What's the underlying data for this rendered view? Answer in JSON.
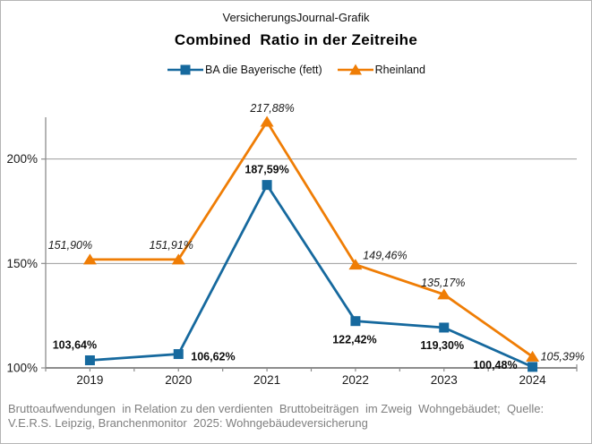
{
  "header": {
    "brand": "VersicherungsJournal-Grafik",
    "title": "Combined  Ratio in der Zeitreihe"
  },
  "legend": {
    "items": [
      {
        "label": "BA die Bayerische (fett)",
        "color": "#16699E",
        "marker": "square"
      },
      {
        "label": "Rheinland",
        "color": "#EF7D05",
        "marker": "triangle"
      }
    ]
  },
  "chart_data": {
    "type": "line",
    "title": "Combined Ratio in der Zeitreihe",
    "categories": [
      "2019",
      "2020",
      "2021",
      "2022",
      "2023",
      "2024"
    ],
    "series": [
      {
        "name": "BA die Bayerische (fett)",
        "color": "#16699E",
        "marker": "square",
        "label_style": "bold",
        "values": [
          103.64,
          106.62,
          187.59,
          122.42,
          119.3,
          100.48
        ],
        "labels": [
          "103,64%",
          "106,62%",
          "187,59%",
          "122,42%",
          "119,30%",
          "100,48%"
        ],
        "label_pos": [
          {
            "dx": -17,
            "dy": -13,
            "anchor": "middle"
          },
          {
            "dx": 14,
            "dy": 7,
            "anchor": "start"
          },
          {
            "dx": 0,
            "dy": -13,
            "anchor": "middle"
          },
          {
            "dx": -1,
            "dy": 25,
            "anchor": "middle"
          },
          {
            "dx": -2,
            "dy": 24,
            "anchor": "middle"
          },
          {
            "dx": -17,
            "dy": 2,
            "anchor": "end"
          }
        ]
      },
      {
        "name": "Rheinland",
        "color": "#EF7D05",
        "marker": "triangle",
        "label_style": "italic",
        "values": [
          151.9,
          151.91,
          217.88,
          149.46,
          135.17,
          105.39
        ],
        "labels": [
          "151,90%",
          "151,91%",
          "217,88%",
          "149,46%",
          "135,17%",
          "105,39%"
        ],
        "label_pos": [
          {
            "dx": -22,
            "dy": -12,
            "anchor": "middle"
          },
          {
            "dx": -8,
            "dy": -12,
            "anchor": "middle"
          },
          {
            "dx": 6,
            "dy": -11,
            "anchor": "middle"
          },
          {
            "dx": 33,
            "dy": -6,
            "anchor": "middle"
          },
          {
            "dx": -1,
            "dy": -9,
            "anchor": "middle"
          },
          {
            "dx": 9,
            "dy": 4,
            "anchor": "start"
          }
        ]
      }
    ],
    "y_axis": {
      "min": 100,
      "max": 220,
      "ticks": [
        100,
        150,
        200
      ],
      "tick_labels": [
        "100%",
        "150%",
        "200%"
      ],
      "gridlines": [
        150,
        200
      ]
    },
    "grid": true,
    "legend_position": "top"
  },
  "footer": {
    "line1": "Bruttoaufwendungen  in Relation zu den verdienten  Bruttobeiträgen  im Zweig  Wohngebäudet;  Quelle:",
    "line2": "V.E.R.S. Leipzig, Branchenmonitor  2025: Wohngebäudeversicherung"
  },
  "colors": {
    "series_ba": "#16699E",
    "series_rheinland": "#EF7D05",
    "gridline": "#9B9B9B",
    "axis": "#8C8C8C",
    "footer_text": "#7F7F7F"
  }
}
